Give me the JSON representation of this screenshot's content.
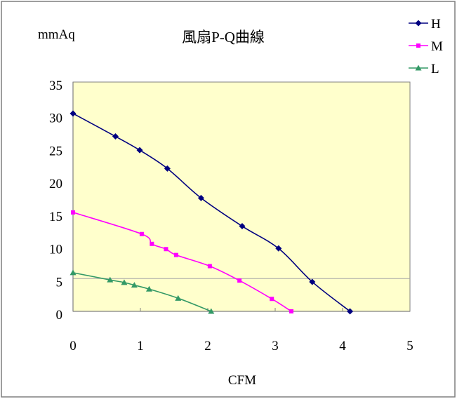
{
  "chart_data": {
    "type": "line",
    "title": "風扇P-Q曲線",
    "ylabel": "mmAq",
    "xlabel": "CFM",
    "xlim": [
      0,
      5
    ],
    "ylim": [
      0,
      35
    ],
    "xticks": [
      "0",
      "1",
      "2",
      "3",
      "4",
      "5"
    ],
    "yticks": [
      "0",
      "5",
      "10",
      "15",
      "20",
      "25",
      "30",
      "35"
    ],
    "gridlines_y": [
      5
    ],
    "legend": "top-right",
    "smooth": true,
    "plot_background": "#FFFFCC",
    "axis_color": "#808080",
    "series": [
      {
        "name": "H",
        "color": "#000080",
        "marker": "diamond",
        "x": [
          0,
          0.63,
          0.99,
          1.4,
          1.9,
          2.51,
          3.05,
          3.55,
          4.11
        ],
        "y": [
          30.2,
          26.7,
          24.6,
          21.8,
          17.3,
          13.0,
          9.6,
          4.5,
          0
        ]
      },
      {
        "name": "M",
        "color": "#FF00FF",
        "marker": "square",
        "x": [
          0,
          1.02,
          1.17,
          1.38,
          1.53,
          2.03,
          2.47,
          2.95,
          3.24
        ],
        "y": [
          15.1,
          11.8,
          10.3,
          9.5,
          8.6,
          6.9,
          4.7,
          1.9,
          0
        ]
      },
      {
        "name": "L",
        "color": "#339966",
        "marker": "triangle",
        "x": [
          0,
          0.55,
          0.76,
          0.91,
          1.13,
          1.56,
          2.05
        ],
        "y": [
          5.9,
          4.8,
          4.4,
          4.0,
          3.4,
          2.0,
          0
        ]
      }
    ]
  }
}
